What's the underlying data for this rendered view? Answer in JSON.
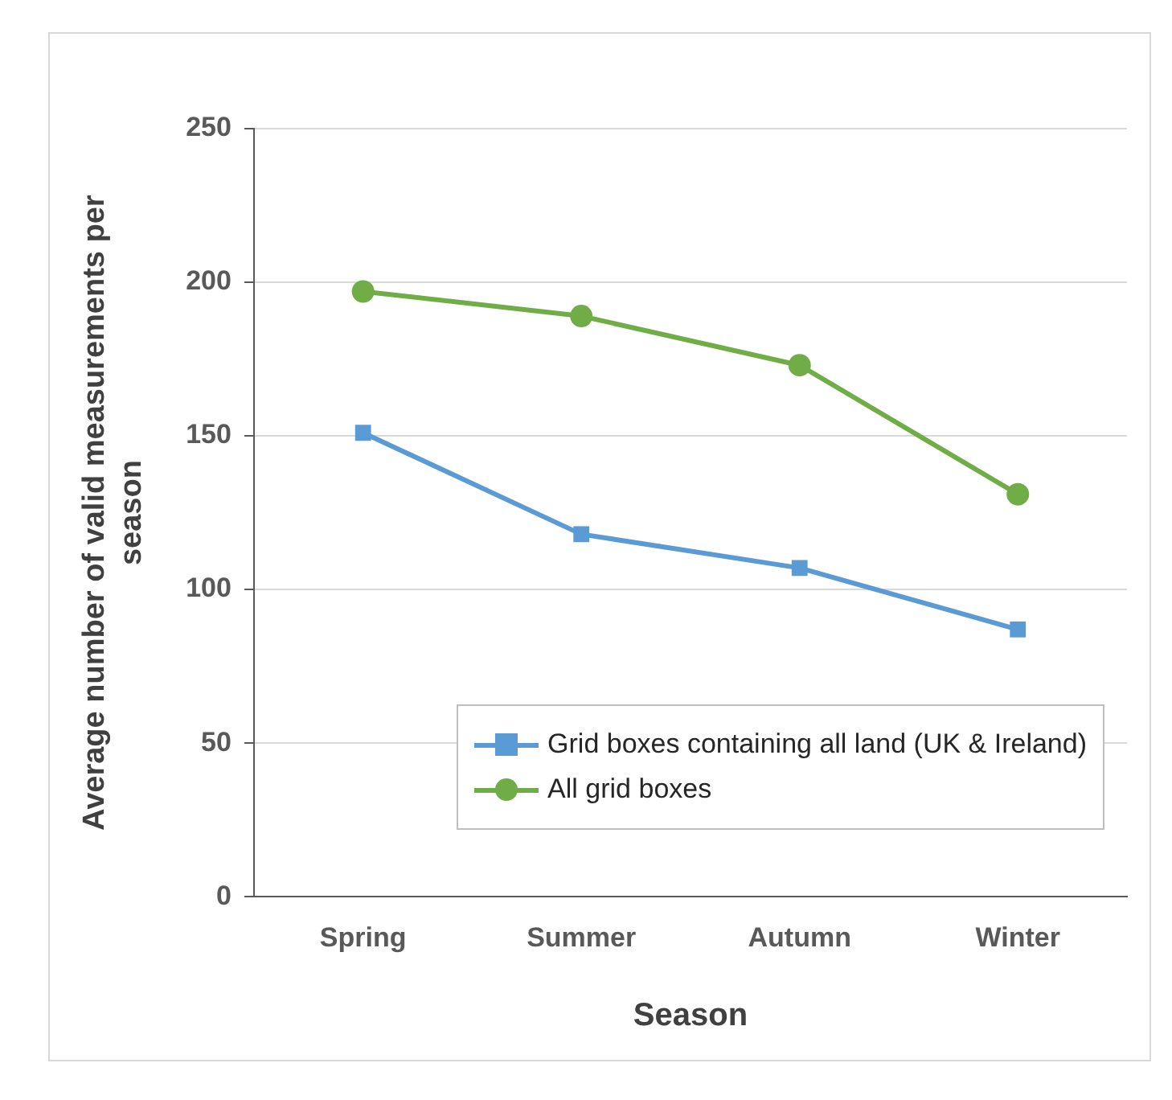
{
  "chart_data": {
    "type": "line",
    "xlabel": "Season",
    "ylabel": "Average number of valid measurements per season",
    "categories": [
      "Spring",
      "Summer",
      "Autumn",
      "Winter"
    ],
    "series": [
      {
        "name": "Grid boxes containing all land (UK & Ireland)",
        "color": "#5b9bd5",
        "marker": "square",
        "values": [
          151,
          118,
          107,
          87
        ]
      },
      {
        "name": "All grid boxes",
        "color": "#70ad47",
        "marker": "circle",
        "values": [
          197,
          189,
          173,
          131
        ]
      }
    ],
    "ylim": [
      0,
      250
    ],
    "yticks": [
      0,
      50,
      100,
      150,
      200,
      250
    ],
    "grid": "y",
    "legend": "bottom right",
    "line_style": "solid"
  }
}
